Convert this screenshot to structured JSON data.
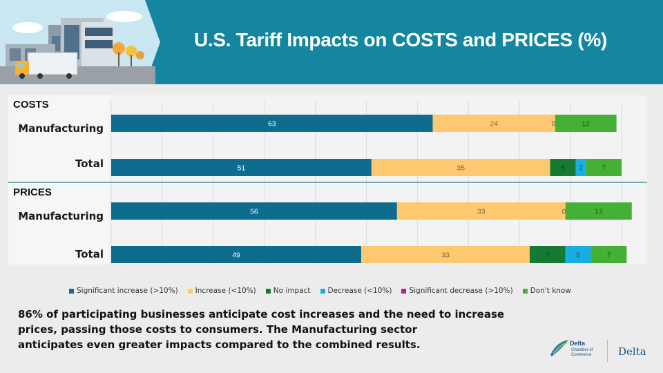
{
  "header": {
    "title": "U.S. Tariff Impacts on COSTS and PRICES (%)"
  },
  "footnote": {
    "line1": "86% of participating businesses anticipate cost increases and the need to increase",
    "line2": "prices, passing those costs to consumers. The Manufacturing sector",
    "line3": "anticipates even greater impacts compared to the combined results."
  },
  "logos": {
    "delta_chamber_name": "Delta",
    "delta_chamber_sub1": "Chamber of",
    "delta_chamber_sub2": "Commerce",
    "delta_city": "Delta"
  },
  "colors": {
    "banner": "#1486a0",
    "series": [
      "#0e6c8f",
      "#fdc86f",
      "#167a32",
      "#19aee3",
      "#b11fa6",
      "#45b036"
    ]
  },
  "chart_data": {
    "type": "bar",
    "orientation": "horizontal",
    "stacked": true,
    "xlim": [
      0,
      100
    ],
    "sections": [
      {
        "name": "COSTS",
        "categories": [
          "Manufacturing",
          "Total"
        ]
      },
      {
        "name": "PRICES",
        "categories": [
          "Manufacturing",
          "Total"
        ]
      }
    ],
    "series": [
      {
        "name": "Significant increase (>10%)",
        "values": [
          63,
          51,
          56,
          49
        ]
      },
      {
        "name": "Increase (<10%)",
        "values": [
          24,
          35,
          33,
          33
        ]
      },
      {
        "name": "No impact",
        "values": [
          0,
          5,
          0,
          7
        ]
      },
      {
        "name": "Decrease (<10%)",
        "values": [
          0,
          2,
          0,
          5
        ]
      },
      {
        "name": "Significant decrease (>10%)",
        "values": [
          0,
          0,
          0,
          0
        ]
      },
      {
        "name": "Don't know",
        "values": [
          12,
          7,
          13,
          7
        ]
      }
    ],
    "shown_labels": [
      [
        "63",
        "24",
        "0",
        "",
        "",
        "12"
      ],
      [
        "51",
        "35",
        "5",
        "2",
        "",
        "7"
      ],
      [
        "56",
        "33",
        "0",
        "",
        "",
        "13"
      ],
      [
        "49",
        "33",
        "7",
        "5",
        "",
        "7"
      ]
    ],
    "legend_position": "bottom"
  }
}
